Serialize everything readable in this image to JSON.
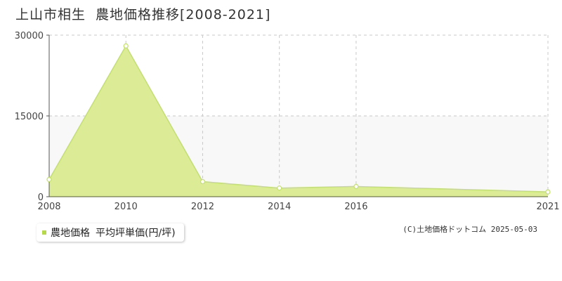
{
  "title": {
    "location": "上山市相生",
    "subject": "農地価格推移[2008-2021]"
  },
  "legend": {
    "series_label": "農地価格",
    "unit_label": "平均坪単価(円/坪)"
  },
  "credit": "(C)土地価格ドットコム 2025-05-03",
  "colors": {
    "fill": "#dcec96",
    "line": "#c3e06a",
    "band": "#f8f8f8",
    "grid": "#c8c8c8",
    "axis": "#555555"
  },
  "chart_data": {
    "type": "area",
    "x": [
      2008,
      2010,
      2012,
      2014,
      2016,
      2021
    ],
    "series": [
      {
        "name": "農地価格",
        "values": [
          3200,
          28000,
          2800,
          1600,
          1900,
          900
        ]
      }
    ],
    "xlim": [
      2008,
      2021
    ],
    "ylim": [
      0,
      30000
    ],
    "x_ticks": [
      2008,
      2010,
      2012,
      2014,
      2016,
      2021
    ],
    "y_ticks": [
      0,
      15000,
      30000
    ],
    "grid": true,
    "legend_position": "bottom-left"
  }
}
